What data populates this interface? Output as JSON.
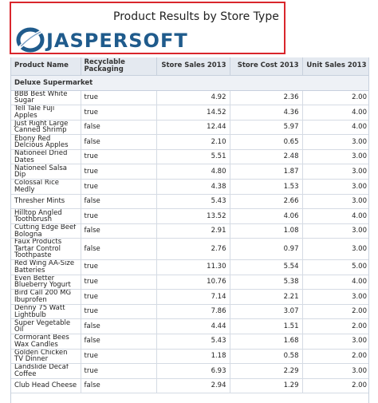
{
  "report": {
    "title": "Product Results by Store Type",
    "logo_text": "JASPERSOFT",
    "colors": {
      "frame_border": "#d9262c",
      "logo_blue": "#1f5b8c",
      "header_bg": "#e4e9f0"
    }
  },
  "table": {
    "headers": [
      "Product Name",
      "Recyclable Packaging",
      "Store Sales 2013",
      "Store Cost 2013",
      "Unit Sales 2013"
    ],
    "group": "Deluxe Supermarket",
    "rows": [
      [
        "BBB Best White Sugar",
        "true",
        "4.92",
        "2.36",
        "2.00"
      ],
      [
        "Tell Tale Fuji Apples",
        "true",
        "14.52",
        "4.36",
        "4.00"
      ],
      [
        "Just Right Large Canned Shrimp",
        "false",
        "12.44",
        "5.97",
        "4.00"
      ],
      [
        "Ebony Red Delcious Apples",
        "false",
        "2.10",
        "0.65",
        "3.00"
      ],
      [
        "Nationeel Dried Dates",
        "true",
        "5.51",
        "2.48",
        "3.00"
      ],
      [
        "Nationeel Salsa Dip",
        "true",
        "4.80",
        "1.87",
        "3.00"
      ],
      [
        "Colossal Rice Medly",
        "true",
        "4.38",
        "1.53",
        "3.00"
      ],
      [
        "Thresher Mints",
        "false",
        "5.43",
        "2.66",
        "3.00"
      ],
      [
        "Hilltop Angled Toothbrush",
        "true",
        "13.52",
        "4.06",
        "4.00"
      ],
      [
        "Cutting Edge Beef Bologna",
        "false",
        "2.91",
        "1.08",
        "3.00"
      ],
      [
        "Faux Products Tartar Control Toothpaste",
        "false",
        "2.76",
        "0.97",
        "3.00"
      ],
      [
        "Red Wing AA-Size Batteries",
        "true",
        "11.30",
        "5.54",
        "5.00"
      ],
      [
        "Even Better Blueberry Yogurt",
        "true",
        "10.76",
        "5.38",
        "4.00"
      ],
      [
        "Bird Call 200 MG Ibuprofen",
        "true",
        "7.14",
        "2.21",
        "3.00"
      ],
      [
        "Denny 75 Watt Lightbulb",
        "true",
        "7.86",
        "3.07",
        "2.00"
      ],
      [
        "Super Vegetable Oil",
        "false",
        "4.44",
        "1.51",
        "2.00"
      ],
      [
        "Cormorant Bees Wax Candles",
        "false",
        "5.43",
        "1.68",
        "3.00"
      ],
      [
        "Golden Chicken TV Dinner",
        "true",
        "1.18",
        "0.58",
        "2.00"
      ],
      [
        "Landslide Decaf Coffee",
        "true",
        "6.93",
        "2.29",
        "3.00"
      ],
      [
        "Club Head Cheese",
        "false",
        "2.94",
        "1.29",
        "2.00"
      ]
    ]
  }
}
